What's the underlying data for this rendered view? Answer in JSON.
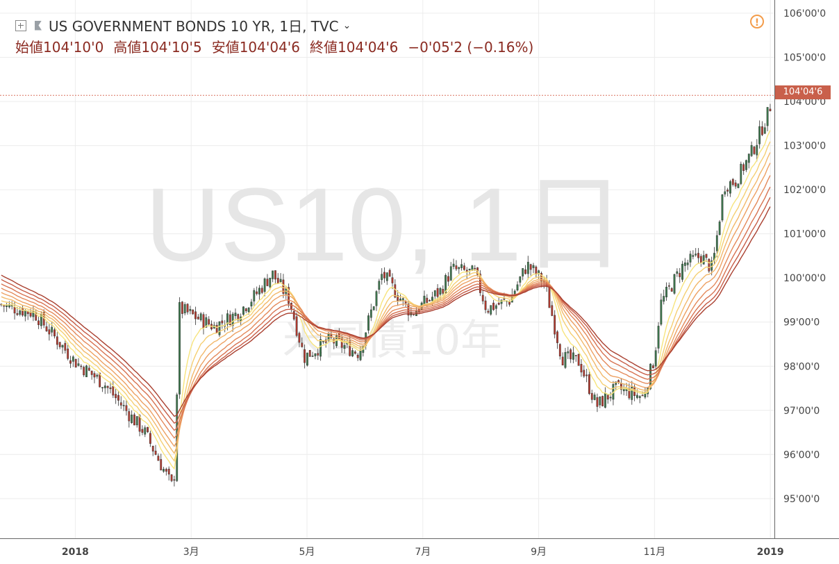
{
  "header": {
    "symbol_title": "US GOVERNMENT BONDS 10 YR, 1日, TVC",
    "chevron": "⌄",
    "open_label": "始値",
    "open": "104'10'0",
    "high_label": "高値",
    "high": "104'10'5",
    "low_label": "安値",
    "low": "104'04'6",
    "close_label": "終値",
    "close": "104'04'6",
    "change": "−0'05'2 (−0.16%)"
  },
  "watermark": {
    "main": "US10, 1日",
    "sub": "米国債10年"
  },
  "warning_icon": "!",
  "price_tag": "104'04'6",
  "chart_data": {
    "type": "candlestick",
    "colors": {
      "up": "#3d7a4e",
      "down": "#b83a2e",
      "ribbon_fast": "#f5e27a",
      "ribbon_slow": "#a53a2a",
      "last_line": "#d9705f",
      "grid": "#ececec"
    },
    "y_axis": {
      "ticks": [
        "95'00'0",
        "96'00'0",
        "97'00'0",
        "98'00'0",
        "99'00'0",
        "100'00'0",
        "101'00'0",
        "102'00'0",
        "103'00'0",
        "104'00'0",
        "105'00'0",
        "106'00'0"
      ],
      "tick_values": [
        95,
        96,
        97,
        98,
        99,
        100,
        101,
        102,
        103,
        104,
        105,
        106
      ],
      "range": [
        94.1,
        106.3
      ]
    },
    "x_axis": {
      "range_months": [
        -1.3,
        12.07
      ],
      "ticks": [
        {
          "label": "2018",
          "m": 0,
          "bold": true
        },
        {
          "label": "3月",
          "m": 2,
          "bold": false
        },
        {
          "label": "5月",
          "m": 4,
          "bold": false
        },
        {
          "label": "7月",
          "m": 6,
          "bold": false
        },
        {
          "label": "9月",
          "m": 8,
          "bold": false
        },
        {
          "label": "11月",
          "m": 10,
          "bold": false
        },
        {
          "label": "2019",
          "m": 12,
          "bold": true
        }
      ]
    },
    "last_price": 104.14,
    "price_series_months": [
      -1.3,
      -0.7,
      0,
      0.5,
      1.0,
      1.2,
      1.7,
      1.8,
      2.4,
      2.8,
      3.1,
      3.4,
      3.7,
      3.95,
      4.4,
      4.9,
      5.3,
      5.8,
      6.3,
      6.5,
      6.9,
      7.1,
      7.5,
      7.8,
      8.1,
      8.4,
      8.7,
      9.0,
      9.35,
      9.8,
      10.0,
      10.1,
      10.5,
      10.8,
      11.0,
      11.2,
      11.4,
      11.7,
      11.95,
      12.07
    ],
    "price_series_values": [
      99.4,
      99.2,
      98.1,
      97.6,
      96.8,
      96.5,
      95.2,
      99.3,
      98.9,
      99.2,
      99.6,
      100.1,
      99.5,
      98.2,
      98.6,
      98.3,
      100.1,
      99.2,
      99.7,
      100.2,
      100.1,
      99.3,
      99.5,
      100.3,
      99.9,
      98.2,
      98.1,
      97.1,
      97.5,
      97.3,
      98.2,
      99.4,
      100.3,
      100.5,
      100.2,
      102.1,
      102.2,
      102.9,
      103.7,
      104.2
    ]
  }
}
